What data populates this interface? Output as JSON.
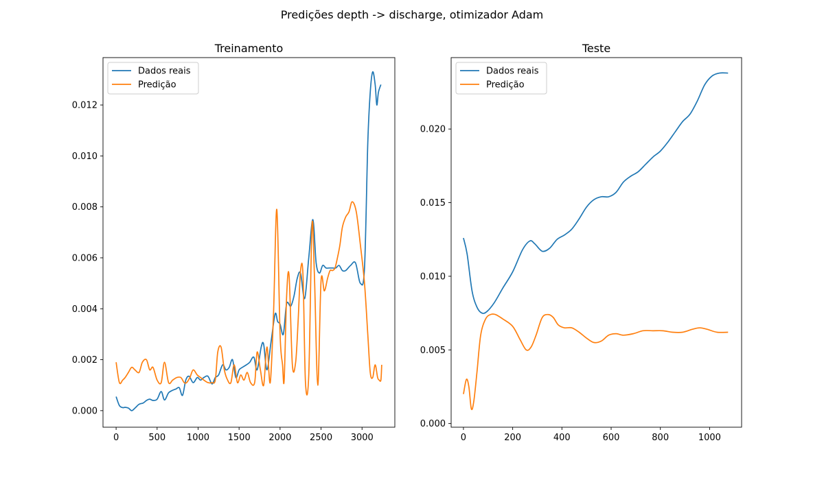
{
  "figure": {
    "title": "Predições depth -> discharge, otimizador Adam"
  },
  "colors": {
    "real": "#1f77b4",
    "pred": "#ff7f0e"
  },
  "chart_data": [
    {
      "type": "line",
      "title": "Treinamento",
      "xlabel": "",
      "ylabel": "",
      "xlim": [
        -160,
        3400
      ],
      "ylim": [
        -0.00065,
        0.01386
      ],
      "xticks": [
        0,
        500,
        1000,
        1500,
        2000,
        2500,
        3000
      ],
      "xtick_labels": [
        "0",
        "500",
        "1000",
        "1500",
        "2000",
        "2500",
        "3000"
      ],
      "yticks": [
        0.0,
        0.002,
        0.004,
        0.006,
        0.008,
        0.01,
        0.012
      ],
      "ytick_labels": [
        "0.000",
        "0.002",
        "0.004",
        "0.006",
        "0.008",
        "0.010",
        "0.012"
      ],
      "grid": false,
      "legend": "top-left",
      "series": [
        {
          "name": "Dados reais",
          "color_key": "real",
          "x": [
            0,
            40,
            80,
            110,
            150,
            190,
            230,
            280,
            330,
            370,
            410,
            450,
            500,
            550,
            590,
            640,
            690,
            730,
            770,
            810,
            850,
            890,
            940,
            990,
            1030,
            1070,
            1120,
            1170,
            1210,
            1250,
            1300,
            1340,
            1380,
            1420,
            1460,
            1500,
            1540,
            1590,
            1630,
            1680,
            1720,
            1770,
            1800,
            1840,
            1890,
            1940,
            1970,
            2000,
            2040,
            2080,
            2130,
            2170,
            2210,
            2250,
            2300,
            2350,
            2400,
            2440,
            2480,
            2520,
            2560,
            2600,
            2640,
            2680,
            2720,
            2760,
            2800,
            2860,
            2920,
            2980,
            3030,
            3070,
            3100,
            3130,
            3160,
            3180,
            3200,
            3230
          ],
          "y": [
            0.00055,
            0.0002,
            0.00012,
            0.00013,
            0.0001,
            0.0,
            0.0001,
            0.00025,
            0.0003,
            0.0004,
            0.00045,
            0.0004,
            0.00045,
            0.00075,
            0.00042,
            0.0007,
            0.0008,
            0.00085,
            0.0009,
            0.0006,
            0.0012,
            0.00135,
            0.0011,
            0.0013,
            0.0012,
            0.0013,
            0.00135,
            0.00105,
            0.0013,
            0.0014,
            0.0018,
            0.0016,
            0.0017,
            0.002,
            0.0013,
            0.0016,
            0.0017,
            0.0018,
            0.0019,
            0.0021,
            0.0016,
            0.0025,
            0.0026,
            0.0016,
            0.0027,
            0.0038,
            0.0035,
            0.0034,
            0.003,
            0.0042,
            0.0041,
            0.0045,
            0.0052,
            0.0054,
            0.0044,
            0.006,
            0.0075,
            0.0058,
            0.0054,
            0.0057,
            0.0056,
            0.0056,
            0.0056,
            0.0056,
            0.0057,
            0.0055,
            0.0055,
            0.0057,
            0.0058,
            0.005,
            0.0056,
            0.0105,
            0.0125,
            0.0133,
            0.0128,
            0.012,
            0.0125,
            0.0128
          ]
        },
        {
          "name": "Predição",
          "color_key": "pred",
          "x": [
            0,
            40,
            80,
            110,
            150,
            190,
            230,
            280,
            320,
            370,
            410,
            450,
            500,
            550,
            590,
            640,
            690,
            740,
            790,
            830,
            860,
            900,
            940,
            990,
            1030,
            1070,
            1120,
            1170,
            1210,
            1240,
            1280,
            1320,
            1360,
            1400,
            1440,
            1480,
            1520,
            1560,
            1600,
            1640,
            1690,
            1720,
            1760,
            1800,
            1840,
            1880,
            1920,
            1960,
            2000,
            2030,
            2050,
            2080,
            2110,
            2150,
            2190,
            2220,
            2250,
            2280,
            2310,
            2350,
            2390,
            2420,
            2460,
            2500,
            2540,
            2580,
            2610,
            2640,
            2670,
            2700,
            2730,
            2760,
            2800,
            2840,
            2880,
            2930,
            2980,
            3030,
            3070,
            3100,
            3130,
            3160,
            3190,
            3210,
            3230,
            3240
          ],
          "y": [
            0.0019,
            0.0011,
            0.0012,
            0.0013,
            0.0015,
            0.0017,
            0.0016,
            0.0015,
            0.0019,
            0.002,
            0.0016,
            0.0017,
            0.0012,
            0.0011,
            0.0019,
            0.0011,
            0.0012,
            0.0013,
            0.0013,
            0.0011,
            0.0011,
            0.0013,
            0.0016,
            0.0014,
            0.0013,
            0.0012,
            0.0011,
            0.0011,
            0.0012,
            0.0023,
            0.0025,
            0.0016,
            0.0012,
            0.0011,
            0.0018,
            0.0011,
            0.0014,
            0.0012,
            0.0015,
            0.0011,
            0.0011,
            0.0023,
            0.0016,
            0.001,
            0.0025,
            0.0011,
            0.0038,
            0.0079,
            0.003,
            0.0018,
            0.0012,
            0.0045,
            0.0053,
            0.0018,
            0.0019,
            0.0035,
            0.0055,
            0.0053,
            0.0011,
            0.0014,
            0.0073,
            0.0052,
            0.001,
            0.0051,
            0.0047,
            0.0052,
            0.0055,
            0.0055,
            0.0056,
            0.006,
            0.0065,
            0.0072,
            0.0076,
            0.0078,
            0.0082,
            0.0078,
            0.0065,
            0.005,
            0.003,
            0.0015,
            0.0013,
            0.0018,
            0.0013,
            0.0012,
            0.0012,
            0.0018
          ]
        }
      ]
    },
    {
      "type": "line",
      "title": "Teste",
      "xlabel": "",
      "ylabel": "",
      "xlim": [
        -50,
        1130
      ],
      "ylim": [
        -0.00025,
        0.02485
      ],
      "xticks": [
        0,
        200,
        400,
        600,
        800,
        1000
      ],
      "xtick_labels": [
        "0",
        "200",
        "400",
        "600",
        "800",
        "1000"
      ],
      "yticks": [
        0.0,
        0.005,
        0.01,
        0.015,
        0.02
      ],
      "ytick_labels": [
        "0.000",
        "0.005",
        "0.010",
        "0.015",
        "0.020"
      ],
      "grid": false,
      "legend": "top-left",
      "series": [
        {
          "name": "Dados reais",
          "color_key": "real",
          "x": [
            0,
            15,
            35,
            55,
            75,
            95,
            125,
            160,
            200,
            240,
            270,
            290,
            320,
            350,
            380,
            410,
            440,
            470,
            500,
            530,
            560,
            590,
            620,
            650,
            680,
            710,
            740,
            770,
            800,
            830,
            860,
            890,
            920,
            950,
            980,
            1010,
            1040,
            1075
          ],
          "y": [
            0.0126,
            0.0115,
            0.009,
            0.0079,
            0.0075,
            0.0076,
            0.0082,
            0.0092,
            0.0103,
            0.0118,
            0.0124,
            0.0122,
            0.0117,
            0.0119,
            0.0125,
            0.0128,
            0.0132,
            0.0139,
            0.0147,
            0.0152,
            0.0154,
            0.0154,
            0.0157,
            0.0164,
            0.0168,
            0.0171,
            0.0176,
            0.0181,
            0.0185,
            0.0191,
            0.0198,
            0.0205,
            0.021,
            0.0219,
            0.023,
            0.0236,
            0.0238,
            0.0238
          ]
        },
        {
          "name": "Predição",
          "color_key": "pred",
          "x": [
            0,
            12,
            22,
            32,
            42,
            55,
            70,
            90,
            110,
            130,
            160,
            200,
            230,
            255,
            275,
            295,
            320,
            345,
            365,
            385,
            410,
            440,
            470,
            500,
            530,
            560,
            590,
            620,
            650,
            690,
            730,
            770,
            810,
            850,
            890,
            930,
            960,
            990,
            1030,
            1075
          ],
          "y": [
            0.002,
            0.003,
            0.0025,
            0.001,
            0.0015,
            0.0035,
            0.006,
            0.0071,
            0.0074,
            0.0074,
            0.0071,
            0.0066,
            0.0057,
            0.005,
            0.0052,
            0.006,
            0.0072,
            0.0074,
            0.0072,
            0.0067,
            0.0065,
            0.0065,
            0.0062,
            0.0058,
            0.0055,
            0.0056,
            0.006,
            0.0061,
            0.006,
            0.0061,
            0.0063,
            0.0063,
            0.0063,
            0.0062,
            0.0062,
            0.0064,
            0.0065,
            0.0064,
            0.0062,
            0.0062
          ]
        }
      ]
    }
  ]
}
